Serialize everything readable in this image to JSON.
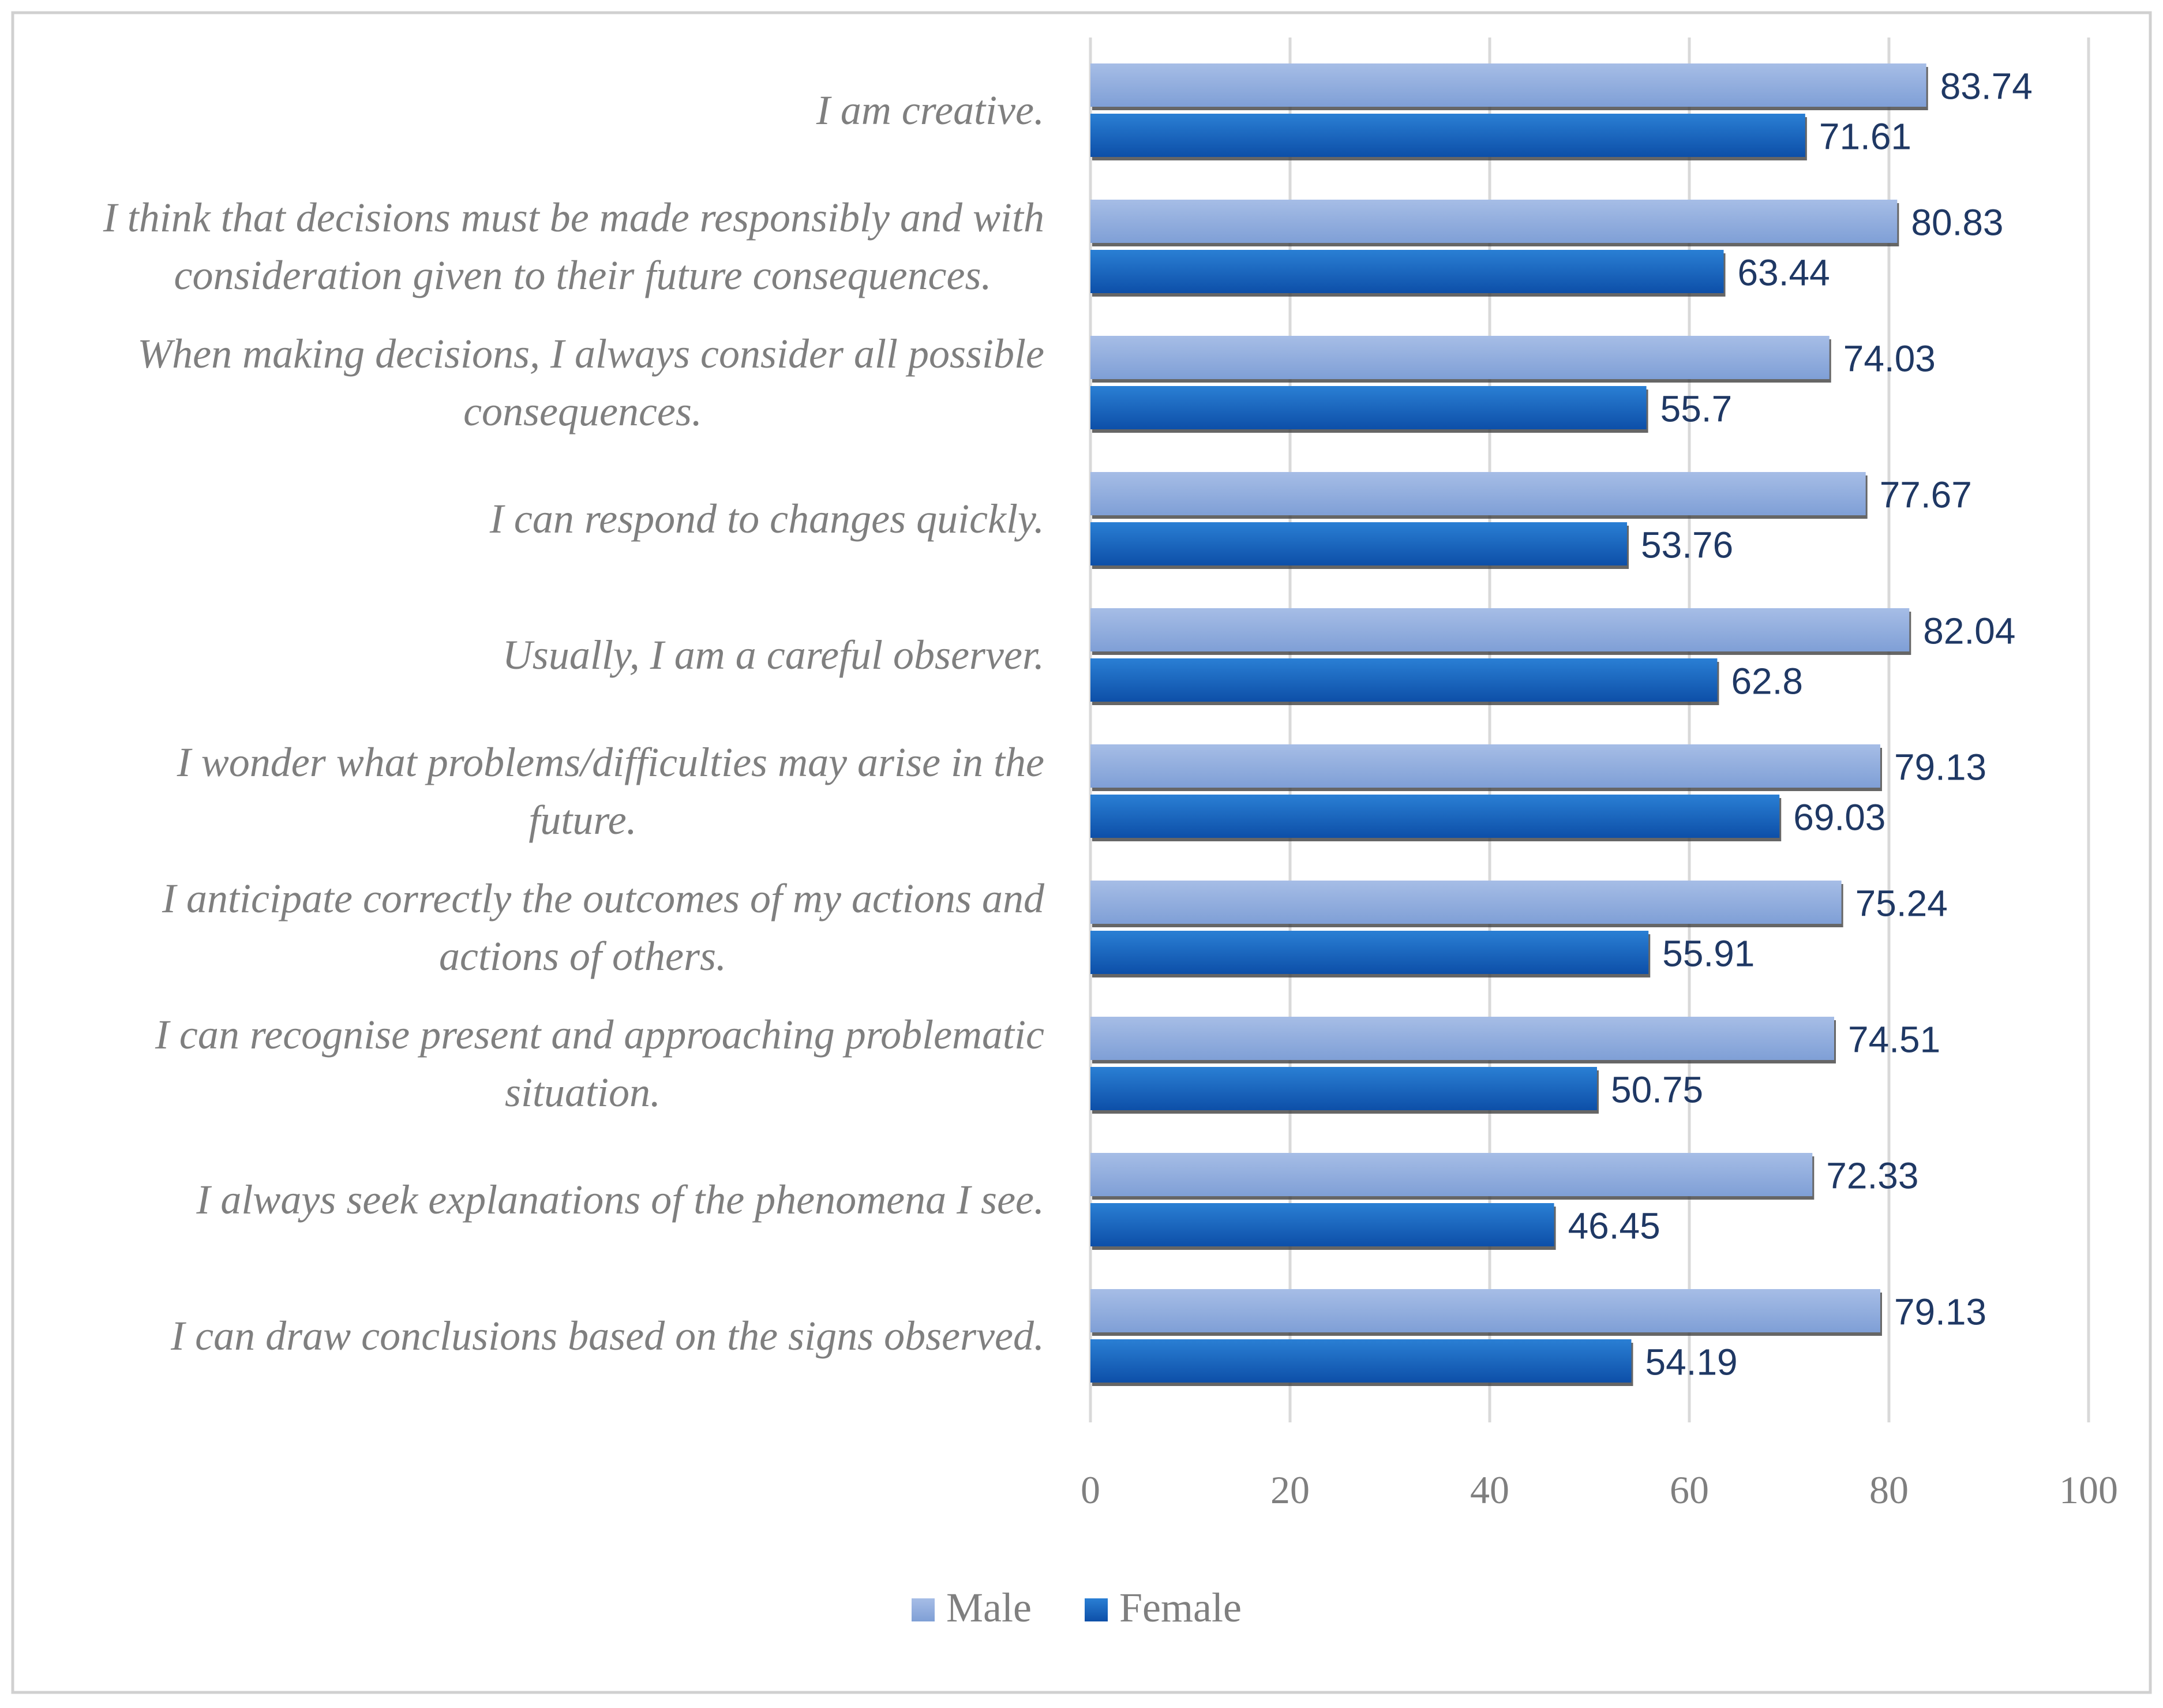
{
  "chart_data": {
    "type": "bar",
    "orientation": "horizontal",
    "title": "",
    "xlabel": "",
    "ylabel": "",
    "xlim": [
      0,
      100
    ],
    "xticks": [
      0,
      20,
      40,
      60,
      80,
      100
    ],
    "grid": true,
    "legend_position": "bottom",
    "categories": [
      [
        "I am creative."
      ],
      [
        "I think that decisions must be made responsibly and with",
        "consideration given to their future consequences."
      ],
      [
        "When making decisions, I always consider all possible",
        "consequences."
      ],
      [
        "I can respond to changes quickly."
      ],
      [
        "Usually, I am a careful observer."
      ],
      [
        "I wonder what problems/difficulties may arise in the",
        "future."
      ],
      [
        "I anticipate correctly the outcomes of my actions and",
        "actions of others."
      ],
      [
        "I can recognise present and approaching problematic",
        "situation."
      ],
      [
        "I always seek explanations of the phenomena I see."
      ],
      [
        "I can draw conclusions based on the signs observed."
      ]
    ],
    "series": [
      {
        "name": "Male",
        "color": "#8faadc",
        "values": [
          83.74,
          80.83,
          74.03,
          77.67,
          82.04,
          79.13,
          75.24,
          74.51,
          72.33,
          79.13
        ],
        "labels": [
          "83.74",
          "80.83",
          "74.03",
          "77.67",
          "82.04",
          "79.13",
          "75.24",
          "74.51",
          "72.33",
          "79.13"
        ]
      },
      {
        "name": "Female",
        "color": "#1565c0",
        "values": [
          71.61,
          63.44,
          55.7,
          53.76,
          62.8,
          69.03,
          55.91,
          50.75,
          46.45,
          54.19
        ],
        "labels": [
          "71.61",
          "63.44",
          "55.7",
          "53.76",
          "62.8",
          "69.03",
          "55.91",
          "50.75",
          "46.45",
          "54.19"
        ]
      }
    ]
  }
}
